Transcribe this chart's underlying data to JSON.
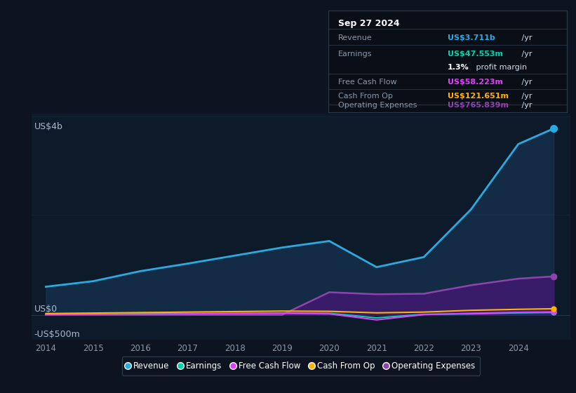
{
  "background_color": "#0d1320",
  "plot_bg_color": "#0d1a2a",
  "grid_color": "#2a3a4a",
  "years": [
    2014,
    2015,
    2016,
    2017,
    2018,
    2019,
    2020,
    2021,
    2022,
    2023,
    2024,
    2024.75
  ],
  "revenue": [
    560,
    670,
    870,
    1020,
    1180,
    1340,
    1470,
    950,
    1150,
    2100,
    3400,
    3711
  ],
  "earnings": [
    10,
    15,
    20,
    25,
    30,
    35,
    30,
    -60,
    10,
    20,
    40,
    47.553
  ],
  "free_cash_flow": [
    5,
    10,
    15,
    20,
    25,
    30,
    20,
    -100,
    5,
    30,
    50,
    58.223
  ],
  "cash_from_op": [
    25,
    35,
    45,
    55,
    65,
    75,
    70,
    40,
    55,
    90,
    110,
    121.651
  ],
  "operating_expenses": [
    0,
    0,
    0,
    0,
    0,
    0,
    450,
    410,
    420,
    590,
    720,
    765.839
  ],
  "revenue_color": "#29abe2",
  "earnings_color": "#00d4aa",
  "free_cash_flow_color": "#e040fb",
  "cash_from_op_color": "#ffb300",
  "operating_expenses_color": "#8e44ad",
  "revenue_fill": "#1a3a5c",
  "operating_expenses_fill": "#3d1a6e",
  "ylim_min": -500,
  "ylim_max": 4000,
  "ylabel_top": "US$4b",
  "ylabel_zero": "US$0",
  "ylabel_neg": "-US$500m",
  "info_box": {
    "date": "Sep 27 2024",
    "revenue_label": "Revenue",
    "revenue_value": "US$3.711b",
    "revenue_color": "#29abe2",
    "earnings_label": "Earnings",
    "earnings_value": "US$47.553m",
    "earnings_color": "#00d4aa",
    "profit_margin": "1.3%",
    "profit_margin_text": " profit margin",
    "fcf_label": "Free Cash Flow",
    "fcf_value": "US$58.223m",
    "fcf_color": "#e040fb",
    "cfo_label": "Cash From Op",
    "cfo_value": "US$121.651m",
    "cfo_color": "#ffb300",
    "opex_label": "Operating Expenses",
    "opex_value": "US$765.839m",
    "opex_color": "#8e44ad"
  },
  "legend_items": [
    {
      "label": "Revenue",
      "color": "#29abe2"
    },
    {
      "label": "Earnings",
      "color": "#00d4aa"
    },
    {
      "label": "Free Cash Flow",
      "color": "#e040fb"
    },
    {
      "label": "Cash From Op",
      "color": "#ffb300"
    },
    {
      "label": "Operating Expenses",
      "color": "#8e44ad"
    }
  ],
  "x_ticks": [
    2014,
    2015,
    2016,
    2017,
    2018,
    2019,
    2020,
    2021,
    2022,
    2023,
    2024
  ]
}
